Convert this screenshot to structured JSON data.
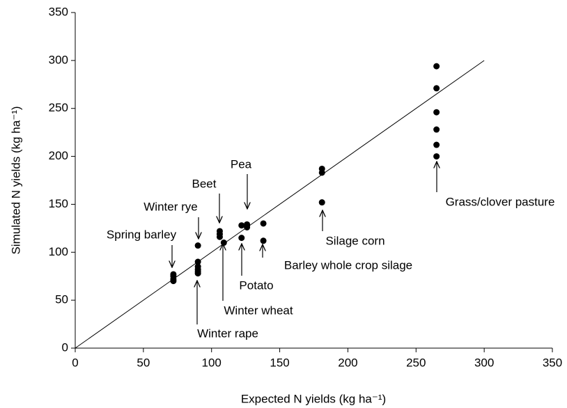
{
  "chart_data": {
    "type": "scatter",
    "x_label": "Expected N yields (kg ha⁻¹)",
    "y_label": "Simulated N yields (kg ha⁻¹)",
    "xlim": [
      0,
      350
    ],
    "ylim": [
      0,
      350
    ],
    "xticks": [
      0,
      50,
      100,
      150,
      200,
      250,
      300,
      350
    ],
    "yticks": [
      0,
      50,
      100,
      150,
      200,
      250,
      300,
      350
    ],
    "series": [
      {
        "color": "#000000",
        "x": [
          72,
          72,
          72,
          72,
          90,
          90,
          90,
          90,
          90,
          90,
          106,
          106,
          106,
          109,
          122,
          122,
          126,
          126,
          126,
          138,
          138,
          181,
          181,
          181,
          265,
          265,
          265,
          265,
          265,
          265
        ],
        "values": [
          70,
          72,
          75,
          77,
          107,
          90,
          85,
          82,
          80,
          78,
          122,
          119,
          116,
          110,
          128,
          115,
          129,
          126,
          128,
          130,
          112,
          187,
          183,
          152,
          294,
          271,
          246,
          228,
          212,
          200
        ]
      }
    ],
    "line": {
      "x": [
        0,
        300
      ],
      "values": [
        0,
        300
      ],
      "color": "#000000"
    },
    "annotations": [
      "Spring barley",
      "Winter rye",
      "Beet",
      "Pea",
      "Winter wheat",
      "Potato",
      "Barley whole crop silage",
      "Silage corn",
      "Winter rape",
      "Grass/clover pasture"
    ]
  }
}
